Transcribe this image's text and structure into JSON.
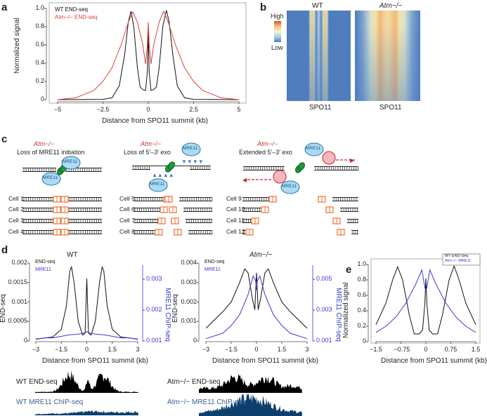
{
  "panel_labels": [
    "a",
    "b",
    "c",
    "d",
    "e"
  ],
  "colors": {
    "wt": "#111111",
    "atm": "#e0403a",
    "mre11": "#3a3ad0",
    "orange": "#f07030",
    "mre11_fill": "#a8dcf5",
    "green": "#1d9a3a",
    "pink": "#f6b8bc",
    "track_black": "#000000",
    "track_blue": "#0d3f6e"
  },
  "panel_b": {
    "titles": [
      "WT",
      "Atm−/−"
    ],
    "scale_high": "High",
    "scale_low": "Low",
    "xlabels": [
      "SPO11",
      "SPO11"
    ]
  },
  "panel_c": {
    "columns": [
      {
        "genotype": "Atm−/−",
        "title": "Loss of MRE11 initiation",
        "mre11_labels": [
          "MRE11",
          "MRE11"
        ],
        "cells": [
          "Cell 1",
          "Cell 2",
          "Cell 3",
          "Cell 4"
        ]
      },
      {
        "genotype": "Atm−/−",
        "title": "Loss of 5′–3′ exo",
        "mre11_labels": [
          "MRE11",
          "MRE11"
        ],
        "cells": [
          "Cell 5",
          "Cell 6",
          "Cell 7",
          "Cell 8"
        ]
      },
      {
        "genotype": "Atm−/−",
        "title": "Extended 5′–3′ exo",
        "mre11_labels": [
          "MRE11",
          "MRE11"
        ],
        "cells": [
          "Cell 9",
          "Cell 10",
          "Cell 11",
          "Cell 12"
        ]
      }
    ]
  },
  "panel_d_tracks": {
    "wt_end": "WT END-seq",
    "wt_mre11": "WT MRE11 ChIP-seq",
    "atm_end": "Atm−/− END-seq",
    "atm_mre11": "Atm−/− MRE11 ChIP-seq"
  },
  "chart_data": [
    {
      "id": "a",
      "type": "line",
      "title": "",
      "xlabel": "Distance from SPO11 summit (kb)",
      "ylabel": "Normalized signal",
      "xlim": [
        -5,
        5
      ],
      "ylim": [
        0,
        1
      ],
      "xticks": [
        "-5",
        "-2.5",
        "0",
        "2.5",
        "5"
      ],
      "xtick_values": [
        -5,
        -2.5,
        0,
        2.5,
        5
      ],
      "yticks": [
        "0",
        "0.2",
        "0.4",
        "0.6",
        "0.8",
        "1.0"
      ],
      "ytick_values": [
        0,
        0.2,
        0.4,
        0.6,
        0.8,
        1.0
      ],
      "legend": "top-left",
      "series": [
        {
          "name": "WT END-seq",
          "color": "#111111",
          "points": [
            [
              -5,
              0
            ],
            [
              -2.5,
              0.003
            ],
            [
              -2,
              0.02
            ],
            [
              -1.6,
              0.15
            ],
            [
              -1.3,
              0.5
            ],
            [
              -1.1,
              0.85
            ],
            [
              -0.95,
              0.97
            ],
            [
              -0.8,
              0.8
            ],
            [
              -0.6,
              0.35
            ],
            [
              -0.45,
              0.14
            ],
            [
              -0.3,
              0.11
            ],
            [
              -0.15,
              0.1
            ],
            [
              -0.05,
              0.3
            ],
            [
              0,
              0.78
            ],
            [
              0.05,
              0.3
            ],
            [
              0.15,
              0.1
            ],
            [
              0.3,
              0.11
            ],
            [
              0.45,
              0.14
            ],
            [
              0.6,
              0.35
            ],
            [
              0.8,
              0.8
            ],
            [
              1.0,
              0.98
            ],
            [
              1.15,
              0.85
            ],
            [
              1.35,
              0.5
            ],
            [
              1.6,
              0.15
            ],
            [
              2,
              0.02
            ],
            [
              2.5,
              0.003
            ],
            [
              5,
              0
            ]
          ]
        },
        {
          "name": "Atm−/− END-seq",
          "color": "#e0403a",
          "points": [
            [
              -5,
              0
            ],
            [
              -4,
              0.02
            ],
            [
              -3,
              0.1
            ],
            [
              -2.5,
              0.2
            ],
            [
              -2,
              0.35
            ],
            [
              -1.5,
              0.6
            ],
            [
              -1.1,
              0.85
            ],
            [
              -0.85,
              0.96
            ],
            [
              -0.6,
              0.85
            ],
            [
              -0.3,
              0.6
            ],
            [
              -0.15,
              0.39
            ],
            [
              -0.05,
              0.6
            ],
            [
              0,
              0.85
            ],
            [
              0.05,
              0.6
            ],
            [
              0.15,
              0.39
            ],
            [
              0.3,
              0.6
            ],
            [
              0.6,
              0.85
            ],
            [
              0.85,
              0.97
            ],
            [
              1.1,
              0.85
            ],
            [
              1.5,
              0.6
            ],
            [
              2,
              0.35
            ],
            [
              2.5,
              0.2
            ],
            [
              3,
              0.1
            ],
            [
              4,
              0.02
            ],
            [
              5,
              0
            ]
          ]
        }
      ]
    },
    {
      "id": "d-wt",
      "type": "line",
      "title": "WT",
      "xlabel": "Distance from SPO11 summit (kb)",
      "ylabel": "END-seq",
      "y2label": "MRE11 ChIP-seq",
      "xlim": [
        -3,
        3
      ],
      "ylim": [
        0,
        0.002
      ],
      "y2lim": [
        0.001,
        0.003
      ],
      "xticks": [
        "-3",
        "-1.5",
        "0",
        "1.5",
        "3"
      ],
      "xtick_values": [
        -3,
        -1.5,
        0,
        1.5,
        3
      ],
      "yticks": [
        "0",
        "0.0005",
        "0.001",
        "0.0015",
        "0.002"
      ],
      "ytick_values": [
        0,
        0.0005,
        0.001,
        0.0015,
        0.002
      ],
      "y2ticks": [
        "0.001",
        "0.002",
        "0.003"
      ],
      "y2tick_values": [
        0.001,
        0.002,
        0.003
      ],
      "legend": "top-left",
      "series": [
        {
          "name": "END-seq",
          "axis": "left",
          "color": "#111111",
          "points": [
            [
              -3,
              5e-05
            ],
            [
              -2,
              0.0001
            ],
            [
              -1.5,
              0.0003
            ],
            [
              -1.2,
              0.0009
            ],
            [
              -1,
              0.0018
            ],
            [
              -0.9,
              0.0019
            ],
            [
              -0.75,
              0.0015
            ],
            [
              -0.5,
              0.0005
            ],
            [
              -0.25,
              0.00015
            ],
            [
              -0.1,
              0.0002
            ],
            [
              0,
              0.0016
            ],
            [
              0.1,
              0.0002
            ],
            [
              0.25,
              0.00015
            ],
            [
              0.5,
              0.0005
            ],
            [
              0.75,
              0.0015
            ],
            [
              0.9,
              0.0019
            ],
            [
              1,
              0.0018
            ],
            [
              1.2,
              0.0009
            ],
            [
              1.5,
              0.0003
            ],
            [
              2,
              0.0001
            ],
            [
              3,
              5e-05
            ]
          ]
        },
        {
          "name": "MRE11",
          "axis": "right",
          "color": "#3a3ad0",
          "points": [
            [
              -3,
              0.00105
            ],
            [
              -2.5,
              0.0011
            ],
            [
              -2,
              0.0011
            ],
            [
              -1.5,
              0.00115
            ],
            [
              -1,
              0.0012
            ],
            [
              -0.5,
              0.00122
            ],
            [
              -0.2,
              0.00125
            ],
            [
              0,
              0.0013
            ],
            [
              0.2,
              0.00125
            ],
            [
              0.5,
              0.00122
            ],
            [
              1,
              0.0012
            ],
            [
              1.5,
              0.00115
            ],
            [
              2,
              0.0011
            ],
            [
              2.5,
              0.0011
            ],
            [
              3,
              0.00105
            ]
          ]
        }
      ]
    },
    {
      "id": "d-atm",
      "type": "line",
      "title": "Atm−/−",
      "xlabel": "Distance from SPO11 summit (kb)",
      "ylabel": "END-seq",
      "y2label": "MRE11 ChIP-seq",
      "xlim": [
        -3,
        3
      ],
      "ylim": [
        0,
        0.004
      ],
      "y2lim": [
        0.001,
        0.005
      ],
      "xticks": [
        "-3",
        "-1.5",
        "0",
        "1.5",
        "3"
      ],
      "xtick_values": [
        -3,
        -1.5,
        0,
        1.5,
        3
      ],
      "yticks": [
        "0",
        "0.001",
        "0.002",
        "0.003",
        "0.004"
      ],
      "ytick_values": [
        0,
        0.001,
        0.002,
        0.003,
        0.004
      ],
      "y2ticks": [
        "0.001",
        "0.003",
        "0.005"
      ],
      "y2tick_values": [
        0.001,
        0.003,
        0.005
      ],
      "legend": "top-left",
      "series": [
        {
          "name": "END-seq",
          "axis": "left",
          "color": "#111111",
          "points": [
            [
              -3,
              0.00065
            ],
            [
              -2,
              0.0015
            ],
            [
              -1.5,
              0.002
            ],
            [
              -1,
              0.003
            ],
            [
              -0.7,
              0.0037
            ],
            [
              -0.5,
              0.0035
            ],
            [
              -0.25,
              0.0022
            ],
            [
              -0.1,
              0.0016
            ],
            [
              0,
              0.0035
            ],
            [
              0.1,
              0.0016
            ],
            [
              0.25,
              0.0022
            ],
            [
              0.5,
              0.0035
            ],
            [
              0.7,
              0.0037
            ],
            [
              1,
              0.003
            ],
            [
              1.5,
              0.002
            ],
            [
              2,
              0.0015
            ],
            [
              3,
              0.00065
            ]
          ]
        },
        {
          "name": "MRE11",
          "axis": "right",
          "color": "#3a3ad0",
          "points": [
            [
              -3,
              0.00115
            ],
            [
              -2,
              0.0015
            ],
            [
              -1.5,
              0.002
            ],
            [
              -1,
              0.0027
            ],
            [
              -0.5,
              0.004
            ],
            [
              -0.2,
              0.0052
            ],
            [
              -0.05,
              0.0049
            ],
            [
              0,
              0.0043
            ],
            [
              0.05,
              0.0049
            ],
            [
              0.2,
              0.0052
            ],
            [
              0.5,
              0.004
            ],
            [
              1,
              0.0027
            ],
            [
              1.5,
              0.002
            ],
            [
              2,
              0.0015
            ],
            [
              3,
              0.00115
            ]
          ]
        }
      ]
    },
    {
      "id": "e",
      "type": "line",
      "xlabel": "Distance from SPO11 summit (kb)",
      "ylabel": "Normalized signal",
      "xlim": [
        -1.5,
        1.5
      ],
      "ylim": [
        0,
        1
      ],
      "xticks": [
        "-1.5",
        "-0.75",
        "0",
        "0.75",
        "1.5"
      ],
      "xtick_values": [
        -1.5,
        -0.75,
        0,
        0.75,
        1.5
      ],
      "yticks": [
        "0",
        "0.2",
        "0.4",
        "0.6",
        "0.8",
        "1.0"
      ],
      "ytick_values": [
        0,
        0.2,
        0.4,
        0.6,
        0.8,
        1.0
      ],
      "legend": "top-right",
      "series": [
        {
          "name": "WT END-Seq",
          "color": "#111111",
          "points": [
            [
              -1.5,
              0.22
            ],
            [
              -1.2,
              0.5
            ],
            [
              -1,
              0.8
            ],
            [
              -0.85,
              0.97
            ],
            [
              -0.7,
              0.8
            ],
            [
              -0.5,
              0.35
            ],
            [
              -0.35,
              0.1
            ],
            [
              -0.2,
              0.1
            ],
            [
              -0.1,
              0.15
            ],
            [
              -0.03,
              0.5
            ],
            [
              0,
              0.82
            ],
            [
              0.03,
              0.5
            ],
            [
              0.1,
              0.15
            ],
            [
              0.2,
              0.1
            ],
            [
              0.35,
              0.1
            ],
            [
              0.5,
              0.35
            ],
            [
              0.7,
              0.8
            ],
            [
              0.85,
              0.98
            ],
            [
              1,
              0.8
            ],
            [
              1.2,
              0.5
            ],
            [
              1.5,
              0.22
            ]
          ]
        },
        {
          "name": "Atm−/− MRE11",
          "color": "#3a3ad0",
          "points": [
            [
              -1.5,
              0.12
            ],
            [
              -1.2,
              0.2
            ],
            [
              -0.9,
              0.32
            ],
            [
              -0.6,
              0.5
            ],
            [
              -0.3,
              0.75
            ],
            [
              -0.12,
              0.93
            ],
            [
              -0.03,
              0.7
            ],
            [
              0,
              0.65
            ],
            [
              0.03,
              0.7
            ],
            [
              0.12,
              0.93
            ],
            [
              0.3,
              0.75
            ],
            [
              0.6,
              0.5
            ],
            [
              0.9,
              0.32
            ],
            [
              1.2,
              0.2
            ],
            [
              1.5,
              0.12
            ]
          ]
        }
      ]
    }
  ]
}
